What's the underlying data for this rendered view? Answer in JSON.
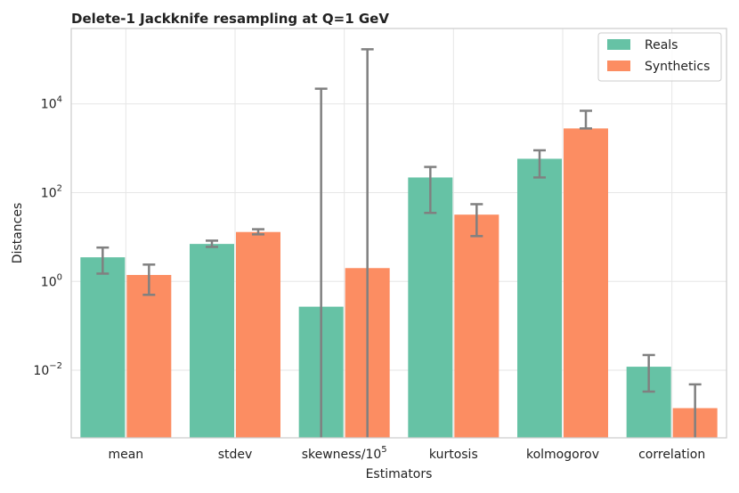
{
  "chart_data": {
    "type": "bar",
    "title": "Delete-1 Jackknife resampling at Q=1 GeV",
    "xlabel": "Estimators",
    "ylabel": "Distances",
    "yscale": "log",
    "ylim": [
      0.0003,
      500000
    ],
    "yticks": [
      {
        "value": 0.01,
        "base": "10",
        "exp": "−2"
      },
      {
        "value": 1,
        "base": "10",
        "exp": "0"
      },
      {
        "value": 100,
        "base": "10",
        "exp": "2"
      },
      {
        "value": 10000,
        "base": "10",
        "exp": "4"
      }
    ],
    "categories": [
      {
        "text": "mean",
        "sup": ""
      },
      {
        "text": "stdev",
        "sup": ""
      },
      {
        "text": "skewness/10",
        "sup": "5"
      },
      {
        "text": "kurtosis",
        "sup": ""
      },
      {
        "text": "kolmogorov",
        "sup": ""
      },
      {
        "text": "correlation",
        "sup": ""
      }
    ],
    "series": [
      {
        "name": "Reals",
        "color": "#66c2a5",
        "values": [
          3.5,
          7.0,
          0.27,
          220,
          580,
          0.012
        ],
        "err_low": [
          1.5,
          6.0,
          0.0001,
          35,
          220,
          0.0033
        ],
        "err_high": [
          5.8,
          8.3,
          22000,
          380,
          900,
          0.022
        ]
      },
      {
        "name": "Synthetics",
        "color": "#fc8d62",
        "values": [
          1.4,
          13,
          2.0,
          32,
          2800,
          0.0014
        ],
        "err_low": [
          0.5,
          11.5,
          0.0001,
          10.5,
          2800,
          0.0001
        ],
        "err_high": [
          2.4,
          15,
          170000,
          55,
          7000,
          0.0048
        ]
      }
    ],
    "legend": {
      "position": "top-right",
      "entries": [
        "Reals",
        "Synthetics"
      ]
    },
    "grid": true
  }
}
